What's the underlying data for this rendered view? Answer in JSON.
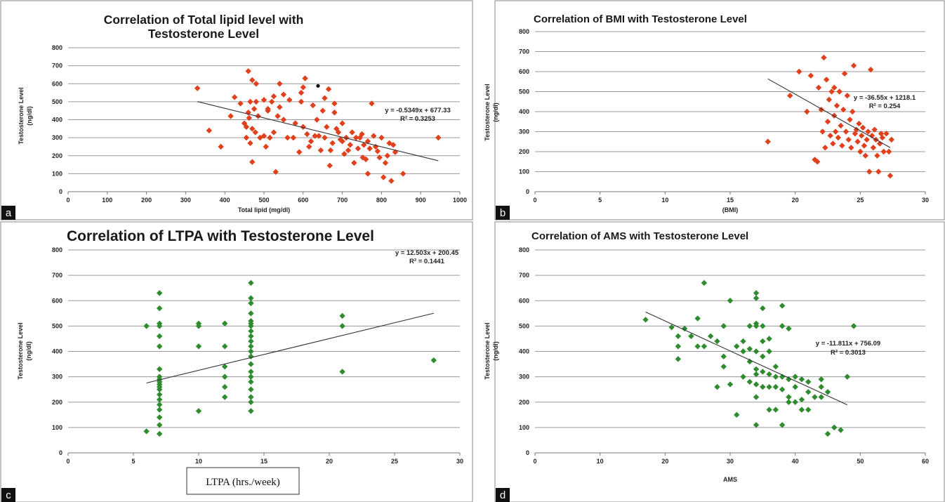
{
  "chart_data": [
    {
      "panel": "a",
      "type": "scatter",
      "title_lines": [
        "Correlation of Total lipid level with",
        "Testosterone Level"
      ],
      "xlabel": "Total lipid (mg/dl)",
      "ylabel_lines": [
        "Testosterone Level",
        "(ng/dl)"
      ],
      "xlim": [
        0,
        1000
      ],
      "ylim": [
        0,
        800
      ],
      "xticks": [
        0,
        100,
        200,
        300,
        400,
        500,
        600,
        700,
        800,
        900,
        1000
      ],
      "yticks": [
        0,
        100,
        200,
        300,
        400,
        500,
        600,
        700,
        800
      ],
      "grid": true,
      "marker_color": "#e0401c",
      "trend": {
        "slope": -0.5349,
        "intercept": 677.33,
        "x_range": [
          330,
          945
        ]
      },
      "equation": "y = -0.5349x + 677.33",
      "r2": "R² = 0.3253",
      "points": [
        [
          330,
          575
        ],
        [
          360,
          340
        ],
        [
          390,
          250
        ],
        [
          415,
          420
        ],
        [
          425,
          525
        ],
        [
          440,
          490
        ],
        [
          450,
          380
        ],
        [
          455,
          300
        ],
        [
          455,
          360
        ],
        [
          460,
          440
        ],
        [
          460,
          670
        ],
        [
          462,
          410
        ],
        [
          465,
          500
        ],
        [
          465,
          270
        ],
        [
          470,
          620
        ],
        [
          470,
          350
        ],
        [
          470,
          165
        ],
        [
          475,
          460
        ],
        [
          478,
          330
        ],
        [
          480,
          500
        ],
        [
          480,
          600
        ],
        [
          485,
          420
        ],
        [
          490,
          300
        ],
        [
          500,
          510
        ],
        [
          500,
          310
        ],
        [
          505,
          250
        ],
        [
          510,
          450
        ],
        [
          510,
          460
        ],
        [
          515,
          300
        ],
        [
          520,
          500
        ],
        [
          525,
          330
        ],
        [
          525,
          530
        ],
        [
          530,
          110
        ],
        [
          535,
          420
        ],
        [
          540,
          600
        ],
        [
          540,
          470
        ],
        [
          550,
          540
        ],
        [
          550,
          400
        ],
        [
          560,
          300
        ],
        [
          565,
          510
        ],
        [
          575,
          300
        ],
        [
          580,
          380
        ],
        [
          590,
          220
        ],
        [
          595,
          500
        ],
        [
          595,
          550
        ],
        [
          600,
          580
        ],
        [
          600,
          360
        ],
        [
          605,
          630
        ],
        [
          610,
          320
        ],
        [
          615,
          250
        ],
        [
          620,
          280
        ],
        [
          625,
          480
        ],
        [
          630,
          310
        ],
        [
          635,
          400
        ],
        [
          640,
          310
        ],
        [
          645,
          230
        ],
        [
          650,
          450
        ],
        [
          655,
          520
        ],
        [
          655,
          300
        ],
        [
          660,
          360
        ],
        [
          665,
          570
        ],
        [
          668,
          145
        ],
        [
          670,
          230
        ],
        [
          675,
          270
        ],
        [
          680,
          490
        ],
        [
          680,
          440
        ],
        [
          685,
          350
        ],
        [
          690,
          330
        ],
        [
          695,
          290
        ],
        [
          700,
          280
        ],
        [
          700,
          380
        ],
        [
          705,
          210
        ],
        [
          710,
          300
        ],
        [
          715,
          230
        ],
        [
          720,
          260
        ],
        [
          725,
          330
        ],
        [
          730,
          160
        ],
        [
          735,
          300
        ],
        [
          740,
          240
        ],
        [
          745,
          300
        ],
        [
          750,
          320
        ],
        [
          752,
          190
        ],
        [
          755,
          260
        ],
        [
          760,
          180
        ],
        [
          765,
          100
        ],
        [
          765,
          280
        ],
        [
          770,
          240
        ],
        [
          775,
          490
        ],
        [
          780,
          310
        ],
        [
          785,
          250
        ],
        [
          790,
          225
        ],
        [
          795,
          190
        ],
        [
          800,
          300
        ],
        [
          805,
          80
        ],
        [
          810,
          160
        ],
        [
          815,
          200
        ],
        [
          820,
          270
        ],
        [
          825,
          60
        ],
        [
          830,
          260
        ],
        [
          835,
          220
        ],
        [
          855,
          100
        ],
        [
          945,
          300
        ]
      ],
      "extra_dot": [
        638,
        588
      ]
    },
    {
      "panel": "b",
      "type": "scatter",
      "title_lines": [
        "Correlation of BMI with Testosterone Level"
      ],
      "xlabel": "(BMI)",
      "ylabel_lines": [
        "Testosterone Level",
        "(ng/dl)"
      ],
      "xlim": [
        0,
        30
      ],
      "ylim": [
        0,
        800
      ],
      "xticks": [
        0,
        5,
        10,
        15,
        20,
        25,
        30
      ],
      "yticks": [
        0,
        100,
        200,
        300,
        400,
        500,
        600,
        700,
        800
      ],
      "grid": true,
      "marker_color": "#e0401c",
      "trend": {
        "slope": -36.55,
        "intercept": 1218.1,
        "x_range": [
          17.9,
          27.3
        ]
      },
      "equation": "y = -36.55x + 1218.1",
      "r2": "R² = 0.254",
      "points": [
        [
          17.9,
          250
        ],
        [
          19.6,
          480
        ],
        [
          20.3,
          600
        ],
        [
          20.9,
          400
        ],
        [
          21.2,
          580
        ],
        [
          21.5,
          160
        ],
        [
          21.7,
          150
        ],
        [
          21.8,
          520
        ],
        [
          22.0,
          410
        ],
        [
          22.1,
          300
        ],
        [
          22.2,
          670
        ],
        [
          22.3,
          220
        ],
        [
          22.4,
          560
        ],
        [
          22.5,
          350
        ],
        [
          22.6,
          460
        ],
        [
          22.7,
          280
        ],
        [
          22.8,
          500
        ],
        [
          22.9,
          240
        ],
        [
          23.0,
          380
        ],
        [
          23.0,
          520
        ],
        [
          23.1,
          300
        ],
        [
          23.2,
          430
        ],
        [
          23.3,
          270
        ],
        [
          23.4,
          500
        ],
        [
          23.5,
          330
        ],
        [
          23.6,
          230
        ],
        [
          23.7,
          410
        ],
        [
          23.8,
          590
        ],
        [
          23.9,
          300
        ],
        [
          24.0,
          480
        ],
        [
          24.1,
          260
        ],
        [
          24.2,
          360
        ],
        [
          24.3,
          220
        ],
        [
          24.4,
          400
        ],
        [
          24.5,
          630
        ],
        [
          24.6,
          290
        ],
        [
          24.7,
          310
        ],
        [
          24.8,
          250
        ],
        [
          24.9,
          340
        ],
        [
          25.0,
          200
        ],
        [
          25.1,
          280
        ],
        [
          25.2,
          320
        ],
        [
          25.3,
          230
        ],
        [
          25.4,
          180
        ],
        [
          25.5,
          260
        ],
        [
          25.6,
          300
        ],
        [
          25.7,
          100
        ],
        [
          25.8,
          610
        ],
        [
          25.9,
          280
        ],
        [
          26.0,
          220
        ],
        [
          26.1,
          310
        ],
        [
          26.2,
          260
        ],
        [
          26.3,
          180
        ],
        [
          26.4,
          100
        ],
        [
          26.5,
          240
        ],
        [
          26.6,
          290
        ],
        [
          26.7,
          270
        ],
        [
          26.8,
          200
        ],
        [
          27.0,
          290
        ],
        [
          27.2,
          200
        ],
        [
          27.3,
          80
        ],
        [
          27.4,
          260
        ]
      ]
    },
    {
      "panel": "c",
      "type": "scatter",
      "title_lines": [
        "Correlation of LTPA with Testosterone Level"
      ],
      "xlabel": "LTPA (hrs./week)",
      "ylabel_lines": [
        "Testosterone Level",
        "(ng/dl)"
      ],
      "xlim": [
        0,
        30
      ],
      "ylim": [
        0,
        800
      ],
      "xticks": [
        0,
        5,
        10,
        15,
        20,
        25,
        30
      ],
      "yticks": [
        0,
        100,
        200,
        300,
        400,
        500,
        600,
        700,
        800
      ],
      "grid": true,
      "marker_color": "#2e8b2e",
      "trend": {
        "slope": 12.503,
        "intercept": 200.45,
        "x_range": [
          6,
          28
        ]
      },
      "equation": "y = 12.503x + 200.45",
      "r2": "R² = 0.1441",
      "points": [
        [
          6,
          500
        ],
        [
          6,
          85
        ],
        [
          7,
          630
        ],
        [
          7,
          570
        ],
        [
          7,
          510
        ],
        [
          7,
          500
        ],
        [
          7,
          460
        ],
        [
          7,
          420
        ],
        [
          7,
          330
        ],
        [
          7,
          300
        ],
        [
          7,
          290
        ],
        [
          7,
          280
        ],
        [
          7,
          270
        ],
        [
          7,
          260
        ],
        [
          7,
          250
        ],
        [
          7,
          230
        ],
        [
          7,
          210
        ],
        [
          7,
          190
        ],
        [
          7,
          170
        ],
        [
          7,
          140
        ],
        [
          7,
          110
        ],
        [
          7,
          75
        ],
        [
          10,
          510
        ],
        [
          10,
          500
        ],
        [
          10,
          420
        ],
        [
          10,
          165
        ],
        [
          12,
          510
        ],
        [
          12,
          420
        ],
        [
          12,
          340
        ],
        [
          12,
          300
        ],
        [
          12,
          260
        ],
        [
          12,
          220
        ],
        [
          14,
          670
        ],
        [
          14,
          610
        ],
        [
          14,
          590
        ],
        [
          14,
          550
        ],
        [
          14,
          520
        ],
        [
          14,
          510
        ],
        [
          14,
          500
        ],
        [
          14,
          480
        ],
        [
          14,
          460
        ],
        [
          14,
          440
        ],
        [
          14,
          420
        ],
        [
          14,
          400
        ],
        [
          14,
          380
        ],
        [
          14,
          350
        ],
        [
          14,
          320
        ],
        [
          14,
          300
        ],
        [
          14,
          280
        ],
        [
          14,
          250
        ],
        [
          14,
          220
        ],
        [
          14,
          200
        ],
        [
          14,
          165
        ],
        [
          21,
          540
        ],
        [
          21,
          500
        ],
        [
          21,
          320
        ],
        [
          28,
          365
        ]
      ]
    },
    {
      "panel": "d",
      "type": "scatter",
      "title_lines": [
        "Correlation of AMS with Testosterone Level"
      ],
      "xlabel": "AMS",
      "ylabel_lines": [
        "Testosterone Level",
        "(ng/dl)"
      ],
      "xlim": [
        0,
        60
      ],
      "ylim": [
        0,
        800
      ],
      "xticks": [
        0,
        10,
        20,
        30,
        40,
        50,
        60
      ],
      "yticks": [
        0,
        100,
        200,
        300,
        400,
        500,
        600,
        700,
        800
      ],
      "grid": true,
      "marker_color": "#2e8b2e",
      "trend": {
        "slope": -11.811,
        "intercept": 756.09,
        "x_range": [
          17,
          48
        ]
      },
      "equation": "y = -11.811x + 756.09",
      "r2": "R² = 0.3013",
      "points": [
        [
          17,
          525
        ],
        [
          21,
          495
        ],
        [
          22,
          460
        ],
        [
          22,
          420
        ],
        [
          22,
          370
        ],
        [
          23,
          490
        ],
        [
          24,
          460
        ],
        [
          25,
          530
        ],
        [
          25,
          420
        ],
        [
          26,
          670
        ],
        [
          26,
          420
        ],
        [
          27,
          460
        ],
        [
          28,
          440
        ],
        [
          28,
          260
        ],
        [
          29,
          500
        ],
        [
          29,
          380
        ],
        [
          29,
          340
        ],
        [
          30,
          600
        ],
        [
          30,
          270
        ],
        [
          31,
          420
        ],
        [
          31,
          150
        ],
        [
          32,
          440
        ],
        [
          32,
          400
        ],
        [
          32,
          300
        ],
        [
          33,
          500
        ],
        [
          33,
          410
        ],
        [
          33,
          360
        ],
        [
          33,
          280
        ],
        [
          34,
          630
        ],
        [
          34,
          610
        ],
        [
          34,
          510
        ],
        [
          34,
          500
        ],
        [
          34,
          400
        ],
        [
          34,
          330
        ],
        [
          34,
          310
        ],
        [
          34,
          270
        ],
        [
          34,
          220
        ],
        [
          34,
          110
        ],
        [
          35,
          570
        ],
        [
          35,
          500
        ],
        [
          35,
          440
        ],
        [
          35,
          380
        ],
        [
          35,
          320
        ],
        [
          35,
          260
        ],
        [
          36,
          450
        ],
        [
          36,
          400
        ],
        [
          36,
          310
        ],
        [
          36,
          260
        ],
        [
          36,
          170
        ],
        [
          37,
          340
        ],
        [
          37,
          300
        ],
        [
          37,
          260
        ],
        [
          37,
          170
        ],
        [
          38,
          580
        ],
        [
          38,
          500
        ],
        [
          38,
          300
        ],
        [
          38,
          250
        ],
        [
          38,
          110
        ],
        [
          39,
          490
        ],
        [
          39,
          290
        ],
        [
          39,
          220
        ],
        [
          39,
          200
        ],
        [
          40,
          300
        ],
        [
          40,
          260
        ],
        [
          40,
          200
        ],
        [
          41,
          290
        ],
        [
          41,
          210
        ],
        [
          41,
          170
        ],
        [
          42,
          280
        ],
        [
          42,
          240
        ],
        [
          42,
          170
        ],
        [
          43,
          220
        ],
        [
          44,
          290
        ],
        [
          44,
          260
        ],
        [
          44,
          220
        ],
        [
          45,
          240
        ],
        [
          45,
          75
        ],
        [
          46,
          100
        ],
        [
          47,
          90
        ],
        [
          48,
          300
        ],
        [
          49,
          500
        ]
      ]
    }
  ]
}
